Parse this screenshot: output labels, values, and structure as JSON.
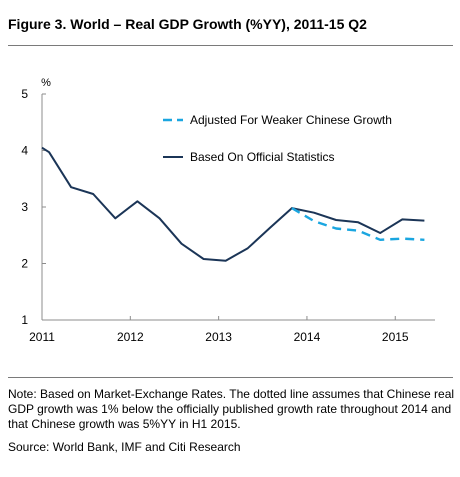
{
  "figure_title": "Figure 3. World – Real GDP Growth (%YY), 2011-15 Q2",
  "note": "Note: Based on Market-Exchange Rates. The dotted line assumes that Chinese real GDP growth was 1% below the officially published growth rate throughout 2014 and that Chinese growth was 5%YY in H1 2015.",
  "source": "Source: World Bank, IMF and Citi Research",
  "colors": {
    "official": "#1b3557",
    "adjusted": "#1aa6e0",
    "axis": "#8c8c8c",
    "rule": "#7a7a7a"
  },
  "chart_data": {
    "type": "line",
    "title": "Figure 3. World – Real GDP Growth (%YY), 2011-15 Q2",
    "ylabel": "%",
    "xlabel": "",
    "ylim": [
      1,
      5
    ],
    "xlim": [
      2011,
      2015.45
    ],
    "yticks": [
      "1",
      "2",
      "3",
      "4",
      "5"
    ],
    "xticks": [
      "2011",
      "2012",
      "2013",
      "2014",
      "2015"
    ],
    "grid": false,
    "legend": "top-right",
    "series": [
      {
        "name": "Adjusted For Weaker Chinese Growth",
        "style": "dashed",
        "x": [
          2013.83,
          2014.08,
          2014.33,
          2014.58,
          2014.83,
          2015.08,
          2015.33
        ],
        "y": [
          2.98,
          2.75,
          2.62,
          2.58,
          2.42,
          2.44,
          2.42
        ]
      },
      {
        "name": "Based On Official Statistics",
        "style": "solid",
        "x": [
          2011.0,
          2011.08,
          2011.33,
          2011.58,
          2011.83,
          2012.08,
          2012.33,
          2012.58,
          2012.83,
          2013.08,
          2013.33,
          2013.58,
          2013.83,
          2014.08,
          2014.33,
          2014.58,
          2014.83,
          2015.08,
          2015.33
        ],
        "y": [
          4.05,
          3.97,
          3.35,
          3.23,
          2.8,
          3.1,
          2.8,
          2.35,
          2.08,
          2.05,
          2.27,
          2.63,
          2.98,
          2.9,
          2.77,
          2.73,
          2.54,
          2.78,
          2.76
        ]
      }
    ]
  }
}
